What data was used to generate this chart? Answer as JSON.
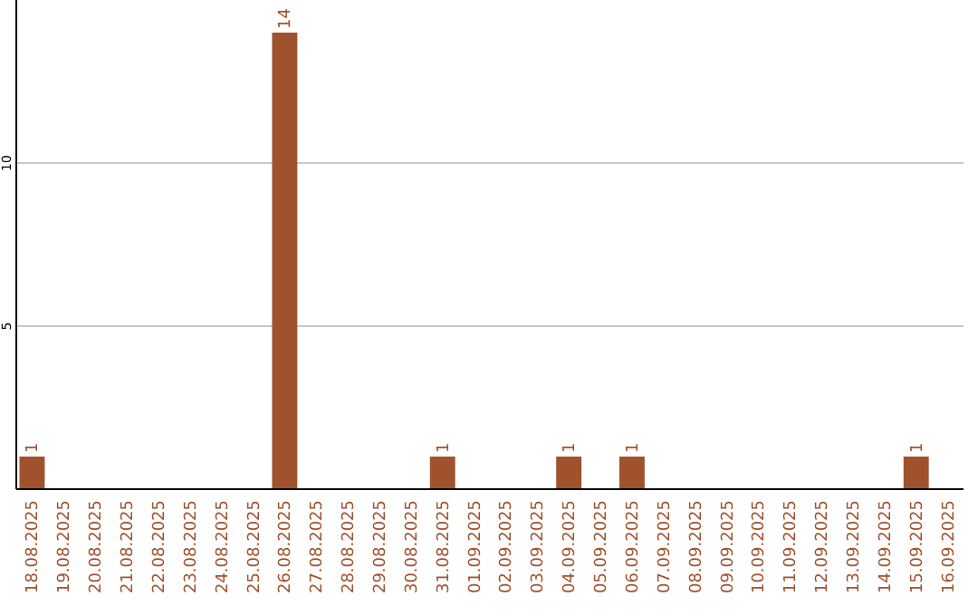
{
  "chart_data": {
    "type": "bar",
    "categories": [
      "18.08.2025",
      "19.08.2025",
      "20.08.2025",
      "21.08.2025",
      "22.08.2025",
      "23.08.2025",
      "24.08.2025",
      "25.08.2025",
      "26.08.2025",
      "27.08.2025",
      "28.08.2025",
      "29.08.2025",
      "30.08.2025",
      "31.08.2025",
      "01.09.2025",
      "02.09.2025",
      "03.09.2025",
      "04.09.2025",
      "05.09.2025",
      "06.09.2025",
      "07.09.2025",
      "08.09.2025",
      "09.09.2025",
      "10.09.2025",
      "11.09.2025",
      "12.09.2025",
      "13.09.2025",
      "14.09.2025",
      "15.09.2025",
      "16.09.2025"
    ],
    "values": [
      1,
      0,
      0,
      0,
      0,
      0,
      0,
      0,
      14,
      0,
      0,
      0,
      0,
      1,
      0,
      0,
      0,
      1,
      0,
      1,
      0,
      0,
      0,
      0,
      0,
      0,
      0,
      0,
      1,
      0
    ],
    "value_labels": [
      "1",
      null,
      null,
      null,
      null,
      null,
      null,
      null,
      "14",
      null,
      null,
      null,
      null,
      "1",
      null,
      null,
      null,
      "1",
      null,
      "1",
      null,
      null,
      null,
      null,
      null,
      null,
      null,
      null,
      "1",
      null
    ],
    "color": "#a0522d",
    "ylim": [
      0,
      15
    ],
    "yticks": [
      5,
      10
    ],
    "grid": "y"
  }
}
